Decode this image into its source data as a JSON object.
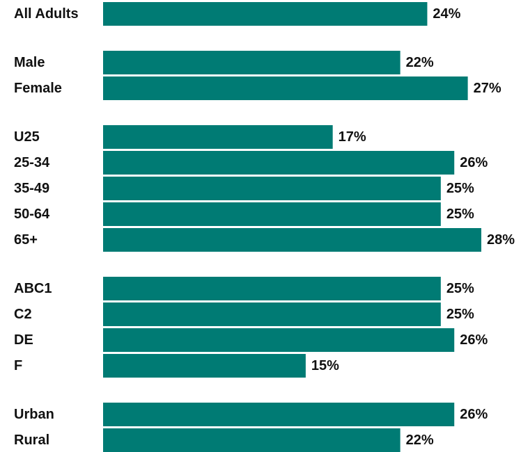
{
  "chart_data": {
    "type": "bar",
    "orientation": "horizontal",
    "categories": [
      "All Adults",
      "Male",
      "Female",
      "U25",
      "25-34",
      "35-49",
      "50-64",
      "65+",
      "ABC1",
      "C2",
      "DE",
      "F",
      "Urban",
      "Rural"
    ],
    "groups": [
      [
        "All Adults"
      ],
      [
        "Male",
        "Female"
      ],
      [
        "U25",
        "25-34",
        "35-49",
        "50-64",
        "65+"
      ],
      [
        "ABC1",
        "C2",
        "DE",
        "F"
      ],
      [
        "Urban",
        "Rural"
      ]
    ],
    "values": [
      24,
      22,
      27,
      17,
      26,
      25,
      25,
      28,
      25,
      25,
      26,
      15,
      26,
      22
    ],
    "value_labels": [
      "24%",
      "22%",
      "27%",
      "17%",
      "26%",
      "25%",
      "25%",
      "28%",
      "25%",
      "25%",
      "26%",
      "15%",
      "26%",
      "22%"
    ],
    "unit": "%",
    "xlim": [
      0,
      28
    ],
    "grid": false,
    "legend": "none",
    "bar_color": "#007b74",
    "text_color": "#111111"
  }
}
